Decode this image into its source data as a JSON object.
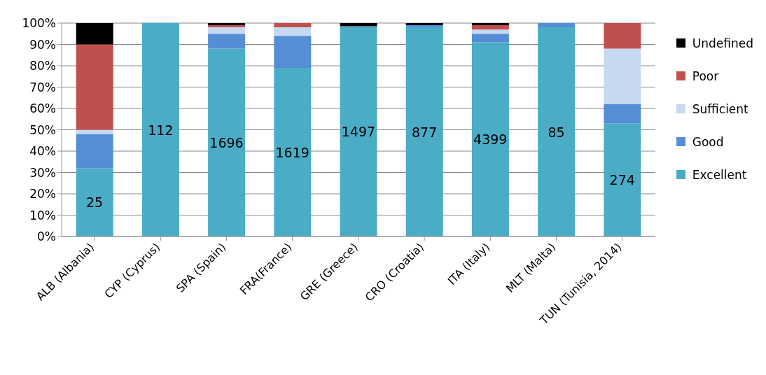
{
  "chart_data": {
    "type": "bar",
    "stacked": true,
    "categories": [
      "ALB (Albania)",
      "CYP (Cyprus)",
      "SPA (Spain)",
      "FRA(France)",
      "GRE (Greece)",
      "CRO (Croatia)",
      "ITA (Italy)",
      "MLT (Malta)",
      "TUN (Tunisia, 2014)"
    ],
    "series": [
      {
        "name": "Excellent",
        "color": "#4bacc6",
        "values": [
          32,
          100,
          88,
          79,
          98.5,
          98,
          91,
          98,
          53
        ]
      },
      {
        "name": "Good",
        "color": "#558ed5",
        "values": [
          16,
          0,
          7,
          15,
          0,
          1,
          4,
          2,
          9
        ]
      },
      {
        "name": "Sufficient",
        "color": "#c6d9f1",
        "values": [
          2,
          0,
          3,
          4,
          0,
          0,
          2,
          0,
          26
        ]
      },
      {
        "name": "Poor",
        "color": "#c0504d",
        "values": [
          40,
          0,
          1,
          2,
          0,
          0,
          2,
          0,
          12
        ]
      },
      {
        "name": "Undefined",
        "color": "#000000",
        "values": [
          10,
          0,
          1,
          0,
          1.5,
          1,
          1,
          0,
          0
        ]
      }
    ],
    "ylim": [
      0,
      100
    ],
    "yticks": [
      {
        "value": 0,
        "label": "0%"
      },
      {
        "value": 10,
        "label": "10%"
      },
      {
        "value": 20,
        "label": "20%"
      },
      {
        "value": 30,
        "label": "30%"
      },
      {
        "value": 40,
        "label": "40%"
      },
      {
        "value": 50,
        "label": "50%"
      },
      {
        "value": 60,
        "label": "60%"
      },
      {
        "value": 70,
        "label": "70%"
      },
      {
        "value": 80,
        "label": "80%"
      },
      {
        "value": 90,
        "label": "90%"
      },
      {
        "value": 100,
        "label": "100%"
      }
    ],
    "annotations": [
      "25",
      "112",
      "1696",
      "1619",
      "1497",
      "877",
      "4399",
      "85",
      "274"
    ],
    "grid": "y",
    "legend": "right"
  }
}
